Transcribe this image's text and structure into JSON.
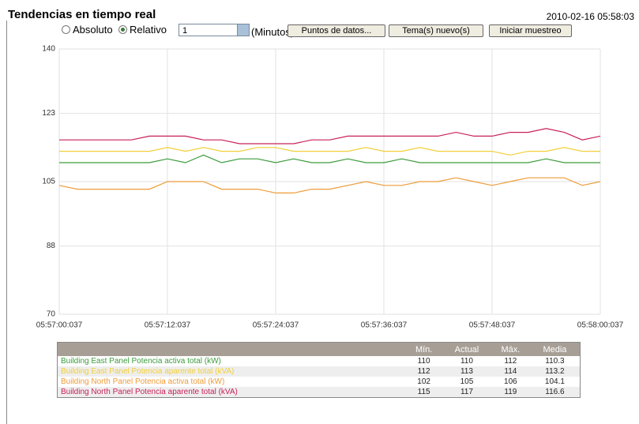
{
  "header": {
    "title": "Tendencias en tiempo real",
    "timestamp": "2010-02-16 05:58:03"
  },
  "controls": {
    "radio_absolute": "Absoluto",
    "radio_relative": "Relativo",
    "interval": "1",
    "unit": "(Minutos)",
    "buttons": [
      "Puntos de datos...",
      "Tema(s) nuevo(s)",
      "Iniciar muestreo"
    ]
  },
  "chart_data": {
    "type": "line",
    "x": [
      0,
      2,
      4,
      6,
      8,
      10,
      12,
      14,
      16,
      18,
      20,
      22,
      24,
      26,
      28,
      30,
      32,
      34,
      36,
      38,
      40,
      42,
      44,
      46,
      48,
      50,
      52,
      54,
      56,
      58,
      60
    ],
    "xlim": [
      0,
      60
    ],
    "xticks": [
      {
        "value": 0,
        "label": "05:57:00:037"
      },
      {
        "value": 12,
        "label": "05:57:12:037"
      },
      {
        "value": 24,
        "label": "05:57:24:037"
      },
      {
        "value": 36,
        "label": "05:57:36:037"
      },
      {
        "value": 48,
        "label": "05:57:48:037"
      },
      {
        "value": 60,
        "label": "05:58:00:037"
      }
    ],
    "ylim": [
      70,
      140
    ],
    "yticks": [
      70,
      88,
      105,
      123,
      140
    ],
    "grid": true,
    "series": [
      {
        "name": "Building East Panel Potencia activa total (kW)",
        "color": "#3c9c3c",
        "values": [
          110,
          110,
          110,
          110,
          110,
          110,
          111,
          110,
          112,
          110,
          111,
          111,
          110,
          111,
          110,
          110,
          111,
          110,
          110,
          111,
          110,
          110,
          110,
          110,
          110,
          110,
          110,
          111,
          110,
          110,
          110
        ]
      },
      {
        "name": "Building East Panel Potencia aparente total (kVA)",
        "color": "#f2cf3a",
        "values": [
          113,
          113,
          113,
          113,
          113,
          113,
          114,
          113,
          114,
          113,
          113,
          114,
          114,
          113,
          113,
          113,
          113,
          114,
          113,
          113,
          114,
          113,
          113,
          113,
          113,
          112,
          113,
          113,
          114,
          113,
          113
        ]
      },
      {
        "name": "Building North Panel Potencia activa total (kW)",
        "color": "#ee9c38",
        "values": [
          104,
          103,
          103,
          103,
          103,
          103,
          105,
          105,
          105,
          103,
          103,
          103,
          102,
          102,
          103,
          103,
          104,
          105,
          104,
          104,
          105,
          105,
          106,
          105,
          104,
          105,
          106,
          106,
          106,
          104,
          105
        ]
      },
      {
        "name": "Building North Panel Potencia aparente total (kVA)",
        "color": "#c8205a",
        "values": [
          116,
          116,
          116,
          116,
          116,
          117,
          117,
          117,
          116,
          116,
          115,
          115,
          115,
          115,
          116,
          116,
          117,
          117,
          117,
          117,
          117,
          117,
          118,
          117,
          117,
          118,
          118,
          119,
          118,
          116,
          117
        ]
      }
    ]
  },
  "table": {
    "columns": [
      "Mín.",
      "Actual",
      "Máx.",
      "Media"
    ],
    "rows": [
      [
        110,
        110,
        112,
        110.3
      ],
      [
        112,
        113,
        114,
        113.2
      ],
      [
        102,
        105,
        106,
        104.1
      ],
      [
        115,
        117,
        119,
        116.6
      ]
    ]
  }
}
